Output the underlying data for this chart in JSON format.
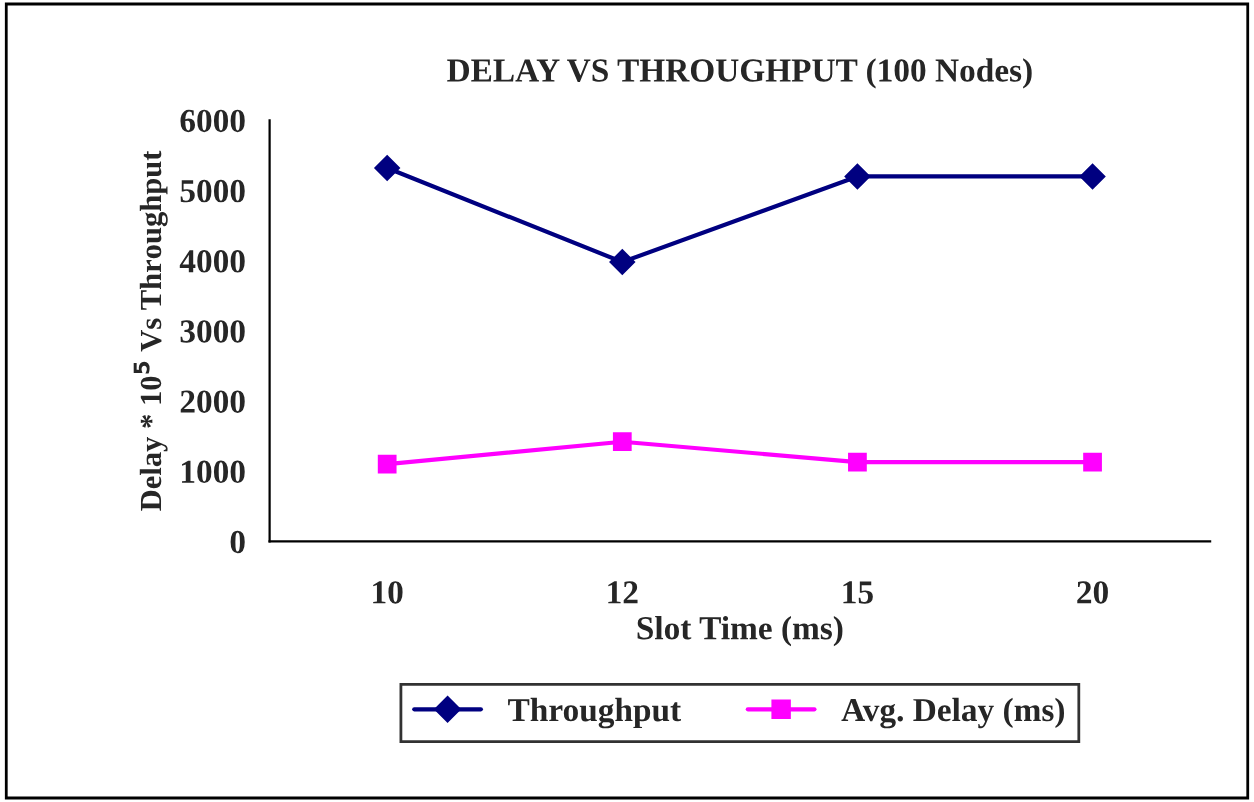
{
  "chart_data": {
    "type": "line",
    "title": "DELAY VS THROUGHPUT (100 Nodes)",
    "xlabel": "Slot Time (ms)",
    "ylabel": "Delay * 10$^{5}$ Vs Throughput",
    "categories": [
      "10",
      "12",
      "15",
      "20"
    ],
    "series": [
      {
        "name": "Throughput",
        "color": "#000080",
        "values": [
          5320,
          3980,
          5200,
          5200
        ],
        "marker": "diamond"
      },
      {
        "name": "Avg. Delay (ms)",
        "color": "#ff00ff",
        "values": [
          1100,
          1420,
          1130,
          1130
        ],
        "marker": "square"
      }
    ],
    "ylim": [
      0,
      6000
    ],
    "yticks": [
      0,
      1000,
      2000,
      3000,
      4000,
      5000,
      6000
    ],
    "grid": false,
    "legend": "bottom",
    "line_style": "solid"
  }
}
